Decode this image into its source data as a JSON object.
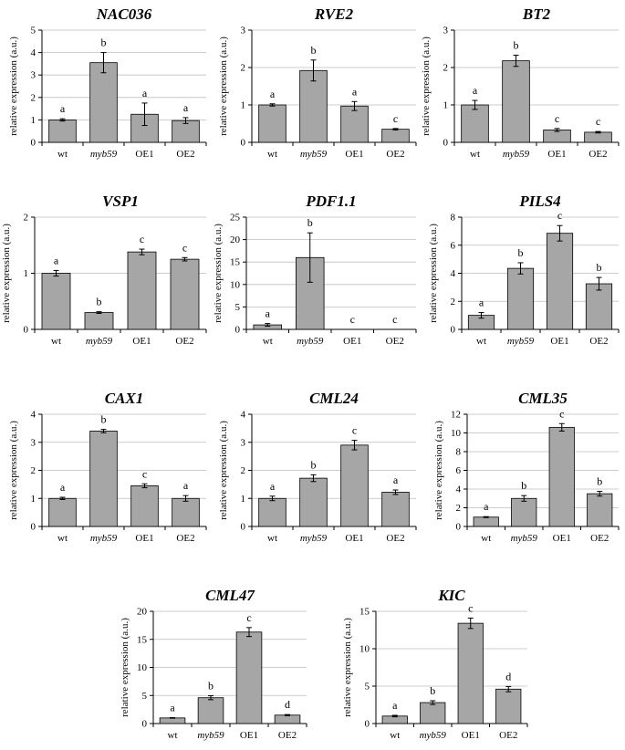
{
  "shared": {
    "ylabel": "relative expression (a.u.)",
    "bar_color": "#a6a6a6",
    "grid_color": "#bdbdbd"
  },
  "chart_data": [
    {
      "type": "bar",
      "title": "NAC036",
      "ylabel": "relative expression (a.u.)",
      "ylim": [
        0,
        5
      ],
      "yticks": [
        0,
        1,
        2,
        3,
        4,
        5
      ],
      "categories": [
        "wt",
        "myb59",
        "OE1",
        "OE2"
      ],
      "values": [
        1.0,
        3.55,
        1.25,
        0.97
      ],
      "errors": [
        0.05,
        0.45,
        0.5,
        0.13
      ],
      "letters": [
        "a",
        "b",
        "a",
        "a"
      ]
    },
    {
      "type": "bar",
      "title": "RVE2",
      "ylabel": "relative expression (a.u.)",
      "ylim": [
        0,
        3
      ],
      "yticks": [
        0,
        1,
        2,
        3
      ],
      "categories": [
        "wt",
        "myb59",
        "OE1",
        "OE2"
      ],
      "values": [
        1.0,
        1.92,
        0.97,
        0.35
      ],
      "errors": [
        0.03,
        0.28,
        0.12,
        0.02
      ],
      "letters": [
        "a",
        "b",
        "a",
        "c"
      ]
    },
    {
      "type": "bar",
      "title": "BT2",
      "ylabel": "relative expression (a.u.)",
      "ylim": [
        0,
        3
      ],
      "yticks": [
        0,
        1,
        2,
        3
      ],
      "categories": [
        "wt",
        "myb59",
        "OE1",
        "OE2"
      ],
      "values": [
        1.0,
        2.18,
        0.33,
        0.27
      ],
      "errors": [
        0.12,
        0.15,
        0.04,
        0.02
      ],
      "letters": [
        "a",
        "b",
        "c",
        "c"
      ]
    },
    {
      "type": "bar",
      "title": "VSP1",
      "ylabel": "relative expression (a.u.)",
      "ylim": [
        0,
        2
      ],
      "yticks": [
        0,
        1,
        2
      ],
      "categories": [
        "wt",
        "myb59",
        "OE1",
        "OE2"
      ],
      "values": [
        1.0,
        0.3,
        1.38,
        1.25
      ],
      "errors": [
        0.05,
        0.015,
        0.05,
        0.03
      ],
      "letters": [
        "a",
        "b",
        "c",
        "c"
      ]
    },
    {
      "type": "bar",
      "title": "PDF1.1",
      "ylabel": "relative expression (a.u.)",
      "ylim": [
        0,
        25
      ],
      "yticks": [
        0,
        5,
        10,
        15,
        20,
        25
      ],
      "categories": [
        "wt",
        "myb59",
        "OE1",
        "OE2"
      ],
      "values": [
        1.0,
        16.0,
        0.02,
        0.02
      ],
      "errors": [
        0.3,
        5.5,
        0,
        0
      ],
      "letters": [
        "a",
        "b",
        "c",
        "c"
      ]
    },
    {
      "type": "bar",
      "title": "PILS4",
      "ylabel": "relative expression (a.u.)",
      "ylim": [
        0,
        8
      ],
      "yticks": [
        0,
        2,
        4,
        6,
        8
      ],
      "categories": [
        "wt",
        "myb59",
        "OE1",
        "OE2"
      ],
      "values": [
        1.0,
        4.35,
        6.85,
        3.25
      ],
      "errors": [
        0.2,
        0.4,
        0.55,
        0.45
      ],
      "letters": [
        "a",
        "b",
        "c",
        "b"
      ]
    },
    {
      "type": "bar",
      "title": "CAX1",
      "ylabel": "relative expression (a.u.)",
      "ylim": [
        0,
        4
      ],
      "yticks": [
        0,
        1,
        2,
        3,
        4
      ],
      "categories": [
        "wt",
        "myb59",
        "OE1",
        "OE2"
      ],
      "values": [
        1.0,
        3.4,
        1.45,
        1.0
      ],
      "errors": [
        0.04,
        0.06,
        0.07,
        0.1
      ],
      "letters": [
        "a",
        "b",
        "c",
        "a"
      ]
    },
    {
      "type": "bar",
      "title": "CML24",
      "ylabel": "relative expression (a.u.)",
      "ylim": [
        0,
        4
      ],
      "yticks": [
        0,
        1,
        2,
        3,
        4
      ],
      "categories": [
        "wt",
        "myb59",
        "OE1",
        "OE2"
      ],
      "values": [
        1.0,
        1.72,
        2.9,
        1.22
      ],
      "errors": [
        0.08,
        0.12,
        0.17,
        0.08
      ],
      "letters": [
        "a",
        "b",
        "c",
        "a"
      ]
    },
    {
      "type": "bar",
      "title": "CML35",
      "ylabel": "relative expression (a.u.)",
      "ylim": [
        0,
        12
      ],
      "yticks": [
        0,
        2,
        4,
        6,
        8,
        10,
        12
      ],
      "categories": [
        "wt",
        "myb59",
        "OE1",
        "OE2"
      ],
      "values": [
        1.0,
        3.0,
        10.6,
        3.5
      ],
      "errors": [
        0.05,
        0.3,
        0.4,
        0.25
      ],
      "letters": [
        "a",
        "b",
        "c",
        "b"
      ]
    },
    {
      "type": "bar",
      "title": "CML47",
      "ylabel": "relative expression (a.u.)",
      "ylim": [
        0,
        20
      ],
      "yticks": [
        0,
        5,
        10,
        15,
        20
      ],
      "categories": [
        "wt",
        "myb59",
        "OE1",
        "OE2"
      ],
      "values": [
        1.0,
        4.6,
        16.3,
        1.5
      ],
      "errors": [
        0.05,
        0.35,
        0.8,
        0.1
      ],
      "letters": [
        "a",
        "b",
        "c",
        "d"
      ]
    },
    {
      "type": "bar",
      "title": "KIC",
      "ylabel": "relative expression (a.u.)",
      "ylim": [
        0,
        15
      ],
      "yticks": [
        0,
        5,
        10,
        15
      ],
      "categories": [
        "wt",
        "myb59",
        "OE1",
        "OE2"
      ],
      "values": [
        1.0,
        2.8,
        13.4,
        4.6
      ],
      "errors": [
        0.1,
        0.25,
        0.7,
        0.35
      ],
      "letters": [
        "a",
        "b",
        "c",
        "d"
      ]
    }
  ]
}
